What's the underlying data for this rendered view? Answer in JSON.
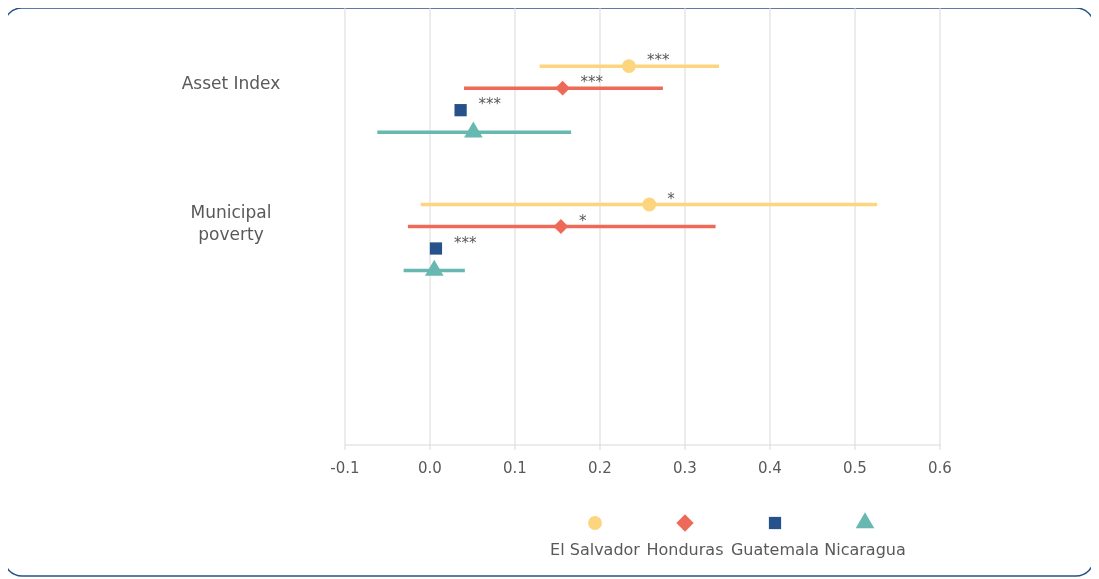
{
  "chart_data": {
    "type": "scatter",
    "orientation": "horizontal",
    "categories": [
      "Asset Index",
      "Municipal poverty",
      null
    ],
    "xlim": [
      -0.1,
      0.6
    ],
    "xticks": [
      {
        "value": -0.1,
        "label": "-0.1"
      },
      {
        "value": 0,
        "label": "0.0"
      },
      {
        "value": 0.1,
        "label": "0.1"
      },
      {
        "value": 0.2,
        "label": "0.2"
      },
      {
        "value": 0.3,
        "label": "0.3"
      },
      {
        "value": 0.4,
        "label": "0.4"
      },
      {
        "value": 0.5,
        "label": "0.5"
      },
      {
        "value": 0.6,
        "label": "0.6"
      }
    ],
    "grid": "x",
    "legend": "bottom",
    "series": [
      {
        "name": "El Salvador",
        "color": "#fdd57e",
        "marker": "circle",
        "values": [
          0.234,
          0.258,
          null
        ],
        "errors": [
          [
            0.129,
            0.34
          ],
          [
            -0.011,
            0.526
          ],
          null
        ],
        "value_labels": [
          "***",
          "*",
          null
        ]
      },
      {
        "name": "Honduras",
        "color": "#ee6a58",
        "marker": "diamond",
        "values": [
          0.156,
          0.154,
          null
        ],
        "errors": [
          [
            0.04,
            0.274
          ],
          [
            -0.026,
            0.336
          ],
          null
        ],
        "value_labels": [
          "***",
          "*",
          null
        ]
      },
      {
        "name": "Guatemala",
        "color": "#27518a",
        "marker": "square",
        "values": [
          0.036,
          0.007,
          null
        ],
        "value_labels": [
          "***",
          "***",
          null
        ]
      },
      {
        "name": "Nicaragua",
        "color": "#66b8b0",
        "marker": "triangle",
        "values": [
          0.051,
          0.005,
          null
        ],
        "errors": [
          [
            -0.062,
            0.166
          ],
          [
            -0.031,
            0.041
          ],
          null
        ],
        "value_labels": [
          null,
          null,
          null
        ]
      }
    ]
  }
}
